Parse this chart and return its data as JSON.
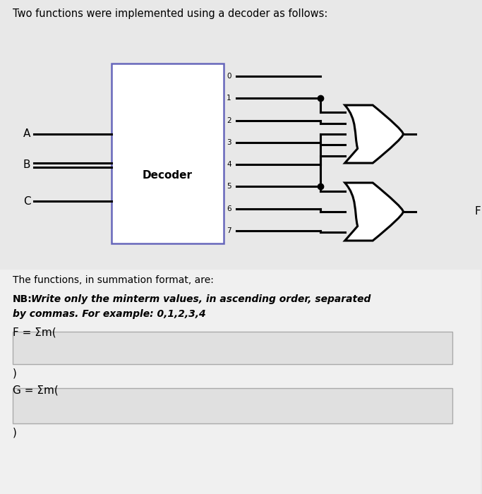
{
  "title": "Two functions were implemented using a decoder as follows:",
  "bg_color": "#e8e8e8",
  "circuit_bg": "#e8e8e8",
  "bottom_bg": "#e8e8e8",
  "decoder_label": "Decoder",
  "input_labels": [
    "A",
    "B",
    "C"
  ],
  "output_numbers": [
    "0",
    "1",
    "2",
    "3",
    "4",
    "5",
    "6",
    "7"
  ],
  "text_functions": "The functions, in summation format, are:",
  "text_nb_bold": "NB: ",
  "text_nb_rest": "Write only the minterm values, in ascending order, separated\nby commas. For example: 0,1,2,3,4",
  "label_F": "F = Σm(",
  "label_G": "G = Σm(",
  "close_paren": ")",
  "line_color": "#000000",
  "decoder_box_border": "#6666bb",
  "input_box_color": "#e0e0e0",
  "input_box_border": "#aaaaaa",
  "font_size_title": 10.5,
  "font_size_decoder": 11,
  "font_size_labels": 11,
  "font_size_num": 7.5,
  "font_size_text": 10,
  "font_size_nb": 10,
  "font_size_eq": 11
}
